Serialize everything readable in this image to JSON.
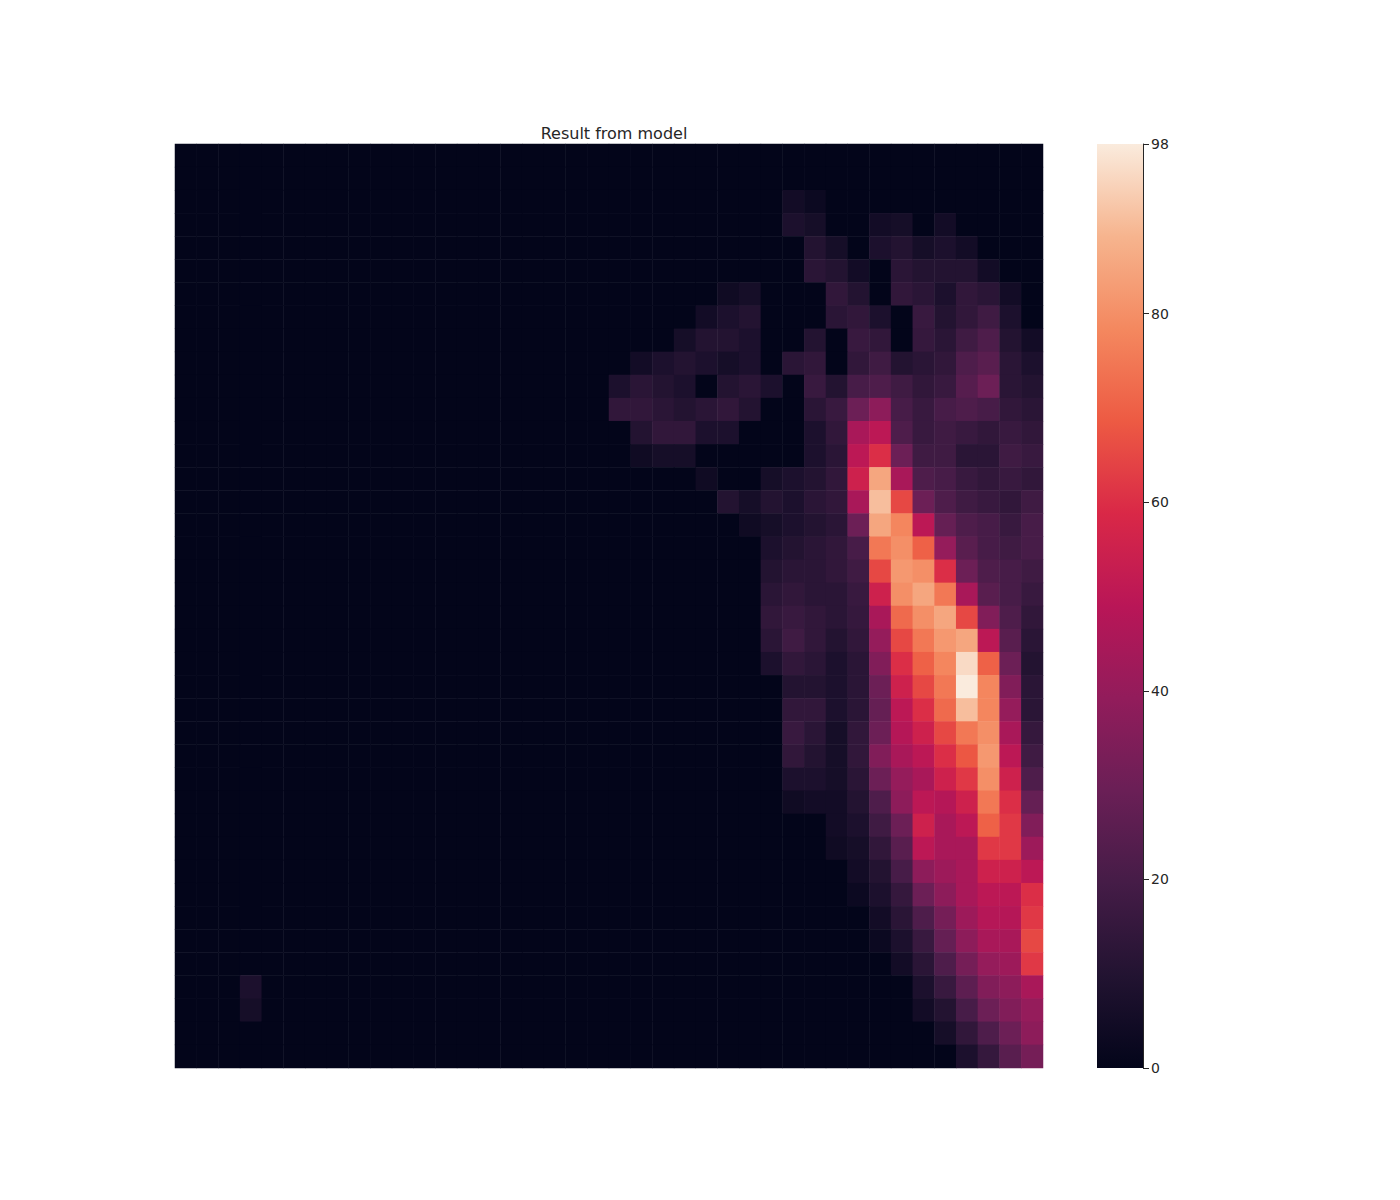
{
  "chart_data": {
    "type": "heatmap",
    "title": "Result from model",
    "tick_labels": false,
    "color_range": [
      0,
      98
    ],
    "color_ticks": [
      0,
      20,
      40,
      60,
      80
    ],
    "cells": [
      [
        0,
        0,
        0,
        0,
        0,
        0,
        0,
        0,
        0,
        0,
        0,
        0,
        0,
        0,
        0,
        0,
        0,
        0,
        0,
        0,
        0,
        0,
        0,
        0,
        0,
        0,
        0,
        0,
        0,
        0,
        0,
        0,
        0,
        0,
        0,
        0,
        0,
        0,
        0,
        0
      ],
      [
        0,
        0,
        0,
        0,
        0,
        0,
        0,
        0,
        0,
        0,
        0,
        0,
        0,
        0,
        0,
        0,
        0,
        0,
        0,
        0,
        0,
        0,
        0,
        0,
        0,
        0,
        0,
        0,
        0,
        0,
        0,
        0,
        0,
        0,
        0,
        0,
        0,
        0,
        0,
        0
      ],
      [
        0,
        0,
        0,
        0,
        0,
        0,
        0,
        0,
        0,
        0,
        0,
        0,
        0,
        0,
        0,
        0,
        0,
        0,
        0,
        0,
        0,
        0,
        0,
        0,
        0,
        0,
        0,
        0,
        5,
        3,
        0,
        0,
        0,
        0,
        0,
        0,
        0,
        0,
        0,
        0
      ],
      [
        0,
        0,
        0,
        0,
        0,
        0,
        0,
        0,
        0,
        0,
        0,
        0,
        0,
        0,
        0,
        0,
        0,
        0,
        0,
        0,
        0,
        0,
        0,
        0,
        0,
        0,
        0,
        0,
        8,
        6,
        0,
        0,
        5,
        6,
        0,
        5,
        0,
        0,
        0,
        0
      ],
      [
        0,
        0,
        0,
        0,
        0,
        0,
        0,
        0,
        0,
        0,
        0,
        0,
        0,
        0,
        0,
        0,
        0,
        0,
        0,
        0,
        0,
        0,
        0,
        0,
        0,
        0,
        0,
        0,
        0,
        10,
        6,
        0,
        8,
        10,
        6,
        8,
        5,
        0,
        0,
        0
      ],
      [
        0,
        0,
        0,
        0,
        0,
        0,
        0,
        0,
        0,
        0,
        0,
        0,
        0,
        0,
        0,
        0,
        0,
        0,
        0,
        0,
        0,
        0,
        0,
        0,
        0,
        0,
        0,
        0,
        0,
        12,
        10,
        5,
        0,
        12,
        10,
        10,
        10,
        5,
        0,
        0
      ],
      [
        0,
        0,
        0,
        0,
        0,
        0,
        0,
        0,
        0,
        0,
        0,
        0,
        0,
        0,
        0,
        0,
        0,
        0,
        0,
        0,
        0,
        0,
        0,
        0,
        0,
        4,
        6,
        0,
        0,
        0,
        14,
        10,
        0,
        14,
        12,
        8,
        14,
        12,
        5,
        0
      ],
      [
        0,
        0,
        0,
        0,
        0,
        0,
        0,
        0,
        0,
        0,
        0,
        0,
        0,
        0,
        0,
        0,
        0,
        0,
        0,
        0,
        0,
        0,
        0,
        0,
        5,
        8,
        10,
        0,
        0,
        0,
        12,
        14,
        8,
        0,
        16,
        10,
        14,
        18,
        8,
        0
      ],
      [
        0,
        0,
        0,
        0,
        0,
        0,
        0,
        0,
        0,
        0,
        0,
        0,
        0,
        0,
        0,
        0,
        0,
        0,
        0,
        0,
        0,
        0,
        0,
        6,
        10,
        10,
        8,
        0,
        0,
        10,
        0,
        16,
        14,
        0,
        15,
        12,
        18,
        22,
        10,
        5
      ],
      [
        0,
        0,
        0,
        0,
        0,
        0,
        0,
        0,
        0,
        0,
        0,
        0,
        0,
        0,
        0,
        0,
        0,
        0,
        0,
        0,
        0,
        5,
        8,
        10,
        8,
        6,
        8,
        0,
        12,
        14,
        0,
        14,
        18,
        10,
        12,
        14,
        22,
        25,
        12,
        8
      ],
      [
        0,
        0,
        0,
        0,
        0,
        0,
        0,
        0,
        0,
        0,
        0,
        0,
        0,
        0,
        0,
        0,
        0,
        0,
        0,
        0,
        8,
        12,
        10,
        8,
        0,
        10,
        12,
        8,
        0,
        16,
        10,
        20,
        22,
        18,
        14,
        16,
        24,
        30,
        12,
        10
      ],
      [
        0,
        0,
        0,
        0,
        0,
        0,
        0,
        0,
        0,
        0,
        0,
        0,
        0,
        0,
        0,
        0,
        0,
        0,
        0,
        0,
        14,
        14,
        12,
        10,
        12,
        14,
        10,
        0,
        0,
        12,
        16,
        30,
        38,
        20,
        16,
        20,
        22,
        20,
        14,
        12
      ],
      [
        0,
        0,
        0,
        0,
        0,
        0,
        0,
        0,
        0,
        0,
        0,
        0,
        0,
        0,
        0,
        0,
        0,
        0,
        0,
        0,
        0,
        10,
        14,
        14,
        8,
        8,
        0,
        0,
        0,
        8,
        14,
        45,
        50,
        22,
        16,
        18,
        16,
        14,
        16,
        14
      ],
      [
        0,
        0,
        0,
        0,
        0,
        0,
        0,
        0,
        0,
        0,
        0,
        0,
        0,
        0,
        0,
        0,
        0,
        0,
        0,
        0,
        0,
        4,
        6,
        6,
        0,
        0,
        0,
        0,
        0,
        8,
        12,
        50,
        60,
        30,
        18,
        18,
        12,
        12,
        18,
        16
      ],
      [
        0,
        0,
        0,
        0,
        0,
        0,
        0,
        0,
        0,
        0,
        0,
        0,
        0,
        0,
        0,
        0,
        0,
        0,
        0,
        0,
        0,
        0,
        0,
        0,
        4,
        0,
        0,
        6,
        8,
        10,
        14,
        55,
        85,
        45,
        22,
        20,
        16,
        14,
        16,
        14
      ],
      [
        0,
        0,
        0,
        0,
        0,
        0,
        0,
        0,
        0,
        0,
        0,
        0,
        0,
        0,
        0,
        0,
        0,
        0,
        0,
        0,
        0,
        0,
        0,
        0,
        0,
        10,
        6,
        10,
        8,
        12,
        14,
        45,
        90,
        65,
        30,
        22,
        18,
        16,
        14,
        18
      ],
      [
        0,
        0,
        0,
        0,
        0,
        0,
        0,
        0,
        0,
        0,
        0,
        0,
        0,
        0,
        0,
        0,
        0,
        0,
        0,
        0,
        0,
        0,
        0,
        0,
        0,
        0,
        4,
        6,
        8,
        10,
        12,
        30,
        85,
        78,
        50,
        28,
        22,
        20,
        16,
        20
      ],
      [
        0,
        0,
        0,
        0,
        0,
        0,
        0,
        0,
        0,
        0,
        0,
        0,
        0,
        0,
        0,
        0,
        0,
        0,
        0,
        0,
        0,
        0,
        0,
        0,
        0,
        0,
        0,
        8,
        10,
        12,
        14,
        20,
        75,
        80,
        70,
        40,
        25,
        20,
        18,
        20
      ],
      [
        0,
        0,
        0,
        0,
        0,
        0,
        0,
        0,
        0,
        0,
        0,
        0,
        0,
        0,
        0,
        0,
        0,
        0,
        0,
        0,
        0,
        0,
        0,
        0,
        0,
        0,
        0,
        10,
        12,
        12,
        14,
        18,
        65,
        82,
        80,
        60,
        30,
        22,
        20,
        18
      ],
      [
        0,
        0,
        0,
        0,
        0,
        0,
        0,
        0,
        0,
        0,
        0,
        0,
        0,
        0,
        0,
        0,
        0,
        0,
        0,
        0,
        0,
        0,
        0,
        0,
        0,
        0,
        0,
        12,
        14,
        12,
        12,
        16,
        55,
        80,
        85,
        75,
        45,
        25,
        20,
        16
      ],
      [
        0,
        0,
        0,
        0,
        0,
        0,
        0,
        0,
        0,
        0,
        0,
        0,
        0,
        0,
        0,
        0,
        0,
        0,
        0,
        0,
        0,
        0,
        0,
        0,
        0,
        0,
        0,
        14,
        16,
        14,
        12,
        15,
        45,
        72,
        80,
        85,
        65,
        35,
        22,
        14
      ],
      [
        0,
        0,
        0,
        0,
        0,
        0,
        0,
        0,
        0,
        0,
        0,
        0,
        0,
        0,
        0,
        0,
        0,
        0,
        0,
        0,
        0,
        0,
        0,
        0,
        0,
        0,
        0,
        12,
        18,
        14,
        10,
        14,
        40,
        65,
        75,
        82,
        85,
        50,
        25,
        12
      ],
      [
        0,
        0,
        0,
        0,
        0,
        0,
        0,
        0,
        0,
        0,
        0,
        0,
        0,
        0,
        0,
        0,
        0,
        0,
        0,
        0,
        0,
        0,
        0,
        0,
        0,
        0,
        0,
        8,
        14,
        12,
        8,
        12,
        35,
        60,
        70,
        78,
        95,
        70,
        30,
        10
      ],
      [
        0,
        0,
        0,
        0,
        0,
        0,
        0,
        0,
        0,
        0,
        0,
        0,
        0,
        0,
        0,
        0,
        0,
        0,
        0,
        0,
        0,
        0,
        0,
        0,
        0,
        0,
        0,
        0,
        10,
        10,
        8,
        12,
        30,
        55,
        65,
        75,
        98,
        78,
        35,
        12
      ],
      [
        0,
        0,
        0,
        0,
        0,
        0,
        0,
        0,
        0,
        0,
        0,
        0,
        0,
        0,
        0,
        0,
        0,
        0,
        0,
        0,
        0,
        0,
        0,
        0,
        0,
        0,
        0,
        0,
        14,
        14,
        8,
        12,
        28,
        50,
        60,
        72,
        90,
        78,
        40,
        12
      ],
      [
        0,
        0,
        0,
        0,
        0,
        0,
        0,
        0,
        0,
        0,
        0,
        0,
        0,
        0,
        0,
        0,
        0,
        0,
        0,
        0,
        0,
        0,
        0,
        0,
        0,
        0,
        0,
        0,
        16,
        12,
        6,
        14,
        30,
        48,
        55,
        65,
        75,
        80,
        45,
        15
      ],
      [
        0,
        0,
        0,
        0,
        0,
        0,
        0,
        0,
        0,
        0,
        0,
        0,
        0,
        0,
        0,
        0,
        0,
        0,
        0,
        0,
        0,
        0,
        0,
        0,
        0,
        0,
        0,
        0,
        14,
        10,
        6,
        14,
        35,
        45,
        50,
        60,
        68,
        82,
        50,
        18
      ],
      [
        0,
        0,
        0,
        0,
        0,
        0,
        0,
        0,
        0,
        0,
        0,
        0,
        0,
        0,
        0,
        0,
        0,
        0,
        0,
        0,
        0,
        0,
        0,
        0,
        0,
        0,
        0,
        0,
        8,
        8,
        6,
        12,
        30,
        40,
        45,
        55,
        62,
        80,
        55,
        22
      ],
      [
        0,
        0,
        0,
        0,
        0,
        0,
        0,
        0,
        0,
        0,
        0,
        0,
        0,
        0,
        0,
        0,
        0,
        0,
        0,
        0,
        0,
        0,
        0,
        0,
        0,
        0,
        0,
        0,
        4,
        5,
        5,
        10,
        22,
        38,
        50,
        48,
        55,
        75,
        60,
        28
      ],
      [
        0,
        0,
        0,
        0,
        0,
        0,
        0,
        0,
        0,
        0,
        0,
        0,
        0,
        0,
        0,
        0,
        0,
        0,
        0,
        0,
        0,
        0,
        0,
        0,
        0,
        0,
        0,
        0,
        0,
        0,
        5,
        8,
        18,
        30,
        55,
        45,
        50,
        70,
        62,
        35
      ],
      [
        0,
        0,
        0,
        0,
        0,
        0,
        0,
        0,
        0,
        0,
        0,
        0,
        0,
        0,
        0,
        0,
        0,
        0,
        0,
        0,
        0,
        0,
        0,
        0,
        0,
        0,
        0,
        0,
        0,
        0,
        4,
        6,
        14,
        25,
        50,
        45,
        45,
        62,
        62,
        42
      ],
      [
        0,
        0,
        0,
        0,
        0,
        0,
        0,
        0,
        0,
        0,
        0,
        0,
        0,
        0,
        0,
        0,
        0,
        0,
        0,
        0,
        0,
        0,
        0,
        0,
        0,
        0,
        0,
        0,
        0,
        0,
        0,
        5,
        10,
        20,
        38,
        42,
        45,
        55,
        55,
        50
      ],
      [
        0,
        0,
        0,
        0,
        0,
        0,
        0,
        0,
        0,
        0,
        0,
        0,
        0,
        0,
        0,
        0,
        0,
        0,
        0,
        0,
        0,
        0,
        0,
        0,
        0,
        0,
        0,
        0,
        0,
        0,
        0,
        3,
        8,
        15,
        30,
        38,
        45,
        50,
        50,
        60
      ],
      [
        0,
        0,
        0,
        0,
        0,
        0,
        0,
        0,
        0,
        0,
        0,
        0,
        0,
        0,
        0,
        0,
        0,
        0,
        0,
        0,
        0,
        0,
        0,
        0,
        0,
        0,
        0,
        0,
        0,
        0,
        0,
        0,
        5,
        12,
        22,
        32,
        42,
        48,
        48,
        62
      ],
      [
        0,
        0,
        0,
        0,
        0,
        0,
        0,
        0,
        0,
        0,
        0,
        0,
        0,
        0,
        0,
        0,
        0,
        0,
        0,
        0,
        0,
        0,
        0,
        0,
        0,
        0,
        0,
        0,
        0,
        0,
        0,
        0,
        3,
        8,
        16,
        28,
        38,
        45,
        45,
        65
      ],
      [
        0,
        0,
        0,
        0,
        0,
        0,
        0,
        0,
        0,
        0,
        0,
        0,
        0,
        0,
        0,
        0,
        0,
        0,
        0,
        0,
        0,
        0,
        0,
        0,
        0,
        0,
        0,
        0,
        0,
        0,
        0,
        0,
        0,
        5,
        12,
        22,
        32,
        40,
        42,
        62
      ],
      [
        0,
        0,
        0,
        8,
        0,
        0,
        0,
        0,
        0,
        0,
        0,
        0,
        0,
        0,
        0,
        0,
        0,
        0,
        0,
        0,
        0,
        0,
        0,
        0,
        0,
        0,
        0,
        0,
        0,
        0,
        0,
        0,
        0,
        0,
        8,
        16,
        26,
        35,
        38,
        45
      ],
      [
        0,
        0,
        0,
        6,
        0,
        0,
        0,
        0,
        0,
        0,
        0,
        0,
        0,
        0,
        0,
        0,
        0,
        0,
        0,
        0,
        0,
        0,
        0,
        0,
        0,
        0,
        0,
        0,
        0,
        0,
        0,
        0,
        0,
        0,
        5,
        10,
        20,
        30,
        35,
        40
      ],
      [
        0,
        0,
        0,
        0,
        0,
        0,
        0,
        0,
        0,
        0,
        0,
        0,
        0,
        0,
        0,
        0,
        0,
        0,
        0,
        0,
        0,
        0,
        0,
        0,
        0,
        0,
        0,
        0,
        0,
        0,
        0,
        0,
        0,
        0,
        0,
        6,
        14,
        22,
        30,
        38
      ],
      [
        0,
        0,
        0,
        0,
        0,
        0,
        0,
        0,
        0,
        0,
        0,
        0,
        0,
        0,
        0,
        0,
        0,
        0,
        0,
        0,
        0,
        0,
        0,
        0,
        0,
        0,
        0,
        0,
        0,
        0,
        0,
        0,
        0,
        0,
        0,
        0,
        8,
        15,
        25,
        32
      ]
    ]
  }
}
